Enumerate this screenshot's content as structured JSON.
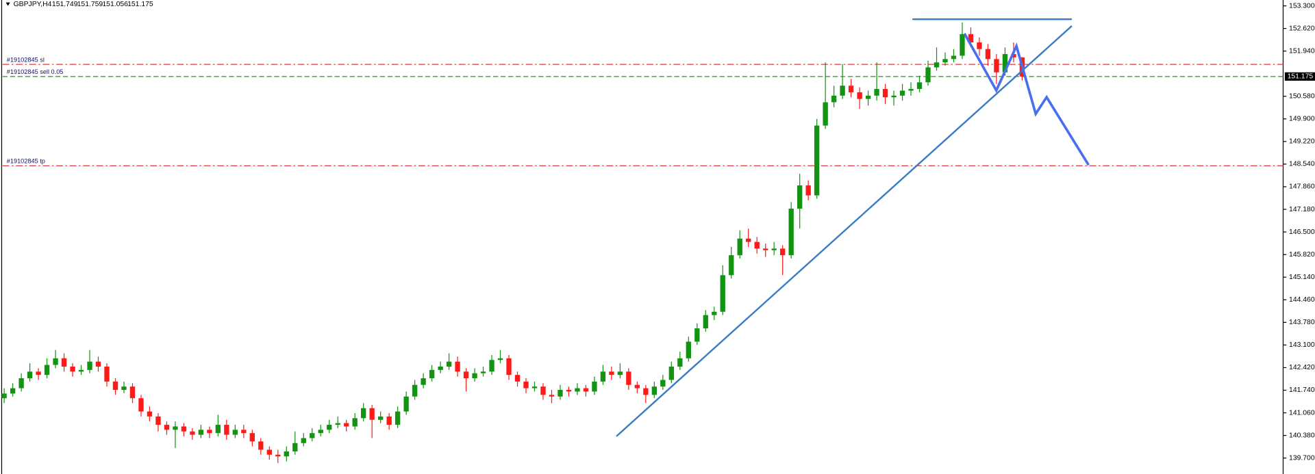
{
  "chart_data": {
    "type": "candlestick",
    "title": "GBPJPY,H4",
    "open": [
      141.5,
      141.64,
      141.8,
      142.1,
      142.3,
      142.2,
      142.5,
      142.7,
      142.45,
      142.3,
      142.35,
      142.6,
      142.45,
      142.0,
      141.75,
      141.85,
      141.5,
      141.1,
      140.95,
      140.7,
      140.55,
      140.65,
      140.5,
      140.4,
      140.55,
      140.45,
      140.7,
      140.4,
      140.55,
      140.45,
      140.2,
      139.95,
      139.8,
      139.75,
      139.9,
      140.15,
      140.3,
      140.45,
      140.55,
      140.7,
      140.75,
      140.65,
      140.9,
      141.2,
      140.85,
      140.95,
      140.7,
      141.1,
      141.55,
      141.9,
      142.1,
      142.35,
      142.45,
      142.6,
      142.3,
      142.1,
      142.25,
      142.3,
      142.65,
      142.7,
      142.2,
      142.0,
      141.8,
      141.85,
      141.6,
      141.55,
      141.75,
      141.7,
      141.8,
      141.7,
      142.0,
      142.3,
      142.2,
      142.3,
      141.9,
      141.8,
      141.6,
      141.85,
      142.05,
      142.45,
      142.7,
      143.2,
      143.6,
      144.0,
      144.1,
      145.2,
      145.8,
      146.3,
      146.2,
      146.0,
      145.95,
      146.0,
      145.8,
      147.2,
      147.9,
      147.6,
      149.7,
      150.4,
      150.6,
      150.9,
      150.7,
      150.5,
      150.6,
      150.8,
      150.55,
      150.6,
      150.75,
      150.8,
      151.0,
      151.45,
      151.6,
      151.7,
      151.8,
      152.45,
      152.2,
      152.0,
      151.7,
      151.3,
      151.85,
      151.749
    ],
    "high": [
      141.8,
      141.95,
      142.25,
      142.55,
      142.4,
      142.7,
      142.95,
      142.85,
      142.55,
      142.5,
      142.95,
      142.75,
      142.55,
      142.1,
      142.0,
      141.95,
      141.6,
      141.25,
      141.05,
      140.8,
      140.8,
      140.75,
      140.6,
      140.7,
      140.65,
      141.0,
      140.85,
      140.7,
      140.7,
      140.55,
      140.3,
      140.05,
      139.95,
      140.05,
      140.5,
      140.45,
      140.6,
      140.7,
      140.85,
      140.95,
      140.85,
      141.05,
      141.35,
      141.3,
      141.1,
      141.05,
      141.25,
      141.7,
      142.05,
      142.25,
      142.5,
      142.6,
      142.85,
      142.75,
      142.4,
      142.4,
      142.45,
      142.8,
      142.95,
      142.8,
      142.3,
      142.1,
      142.0,
      141.95,
      141.75,
      141.9,
      141.85,
      141.95,
      141.9,
      142.15,
      142.5,
      142.45,
      142.55,
      142.4,
      142.0,
      141.9,
      142.0,
      142.2,
      142.6,
      142.9,
      143.35,
      143.75,
      144.15,
      144.25,
      145.5,
      146.05,
      146.55,
      146.6,
      146.35,
      146.15,
      146.2,
      146.1,
      147.4,
      148.25,
      148.05,
      149.9,
      151.6,
      150.9,
      151.55,
      151.1,
      150.85,
      150.75,
      151.6,
      150.95,
      150.75,
      150.95,
      151.0,
      151.2,
      151.65,
      152.05,
      151.9,
      152.0,
      152.8,
      152.65,
      152.35,
      152.15,
      151.85,
      152.05,
      152.2,
      151.759
    ],
    "low": [
      141.35,
      141.55,
      141.7,
      142.0,
      142.05,
      142.1,
      142.4,
      142.3,
      142.15,
      142.2,
      142.25,
      142.3,
      141.85,
      141.6,
      141.65,
      141.35,
      140.95,
      140.8,
      140.5,
      140.4,
      140.0,
      140.35,
      140.25,
      140.3,
      140.3,
      140.35,
      140.25,
      140.3,
      140.3,
      140.05,
      139.8,
      139.65,
      139.55,
      139.6,
      139.8,
      140.05,
      140.2,
      140.35,
      140.45,
      140.6,
      140.5,
      140.55,
      140.8,
      140.3,
      140.75,
      140.55,
      140.6,
      141.0,
      141.45,
      141.8,
      142.0,
      142.25,
      142.35,
      142.15,
      141.7,
      142.0,
      142.15,
      142.2,
      142.55,
      142.05,
      141.85,
      141.65,
      141.7,
      141.45,
      141.35,
      141.45,
      141.55,
      141.6,
      141.55,
      141.6,
      141.9,
      142.05,
      142.1,
      141.75,
      141.65,
      141.35,
      141.5,
      141.75,
      141.95,
      142.35,
      142.6,
      143.1,
      143.5,
      143.85,
      144.0,
      145.1,
      145.7,
      146.05,
      145.85,
      145.75,
      145.8,
      145.2,
      145.7,
      146.6,
      147.45,
      147.5,
      149.6,
      150.25,
      150.5,
      150.55,
      150.2,
      150.3,
      150.45,
      150.35,
      150.3,
      150.45,
      150.6,
      150.7,
      150.9,
      151.35,
      151.5,
      151.6,
      151.7,
      152.05,
      151.8,
      151.5,
      150.95,
      151.2,
      151.6,
      151.056
    ],
    "close": [
      141.64,
      141.8,
      142.1,
      142.3,
      142.2,
      142.5,
      142.7,
      142.45,
      142.3,
      142.35,
      142.6,
      142.45,
      142.0,
      141.75,
      141.85,
      141.5,
      141.1,
      140.95,
      140.7,
      140.55,
      140.65,
      140.5,
      140.4,
      140.55,
      140.45,
      140.7,
      140.4,
      140.55,
      140.45,
      140.2,
      139.95,
      139.8,
      139.75,
      139.9,
      140.15,
      140.3,
      140.45,
      140.55,
      140.7,
      140.75,
      140.65,
      140.9,
      141.2,
      140.85,
      140.95,
      140.7,
      141.1,
      141.55,
      141.9,
      142.1,
      142.35,
      142.45,
      142.6,
      142.3,
      142.1,
      142.25,
      142.3,
      142.65,
      142.7,
      142.2,
      142.0,
      141.8,
      141.85,
      141.6,
      141.55,
      141.75,
      141.7,
      141.8,
      141.7,
      142.0,
      142.3,
      142.2,
      142.3,
      141.9,
      141.8,
      141.6,
      141.85,
      142.05,
      142.45,
      142.7,
      143.2,
      143.6,
      144.0,
      144.1,
      145.2,
      145.8,
      146.3,
      146.2,
      146.0,
      145.95,
      146.0,
      145.8,
      147.2,
      147.9,
      147.6,
      149.7,
      150.4,
      150.6,
      150.9,
      150.7,
      150.5,
      150.6,
      150.8,
      150.55,
      150.6,
      150.75,
      150.8,
      151.0,
      151.45,
      151.6,
      151.7,
      151.8,
      152.45,
      152.2,
      152.0,
      151.7,
      151.3,
      151.85,
      151.75,
      151.175
    ],
    "up_color": "#129412",
    "down_color": "#ff1a1a",
    "ylim": [
      139.22,
      153.476
    ],
    "yticks": [
      {
        "value": 153.3,
        "label": "153.300"
      },
      {
        "value": 152.62,
        "label": "152.620"
      },
      {
        "value": 151.94,
        "label": "151.940"
      },
      {
        "value": 150.58,
        "label": "150.580"
      },
      {
        "value": 149.9,
        "label": "149.900"
      },
      {
        "value": 149.22,
        "label": "149.220"
      },
      {
        "value": 148.54,
        "label": "148.540"
      },
      {
        "value": 147.86,
        "label": "147.860"
      },
      {
        "value": 147.18,
        "label": "147.180"
      },
      {
        "value": 146.5,
        "label": "146.500"
      },
      {
        "value": 145.82,
        "label": "145.820"
      },
      {
        "value": 145.14,
        "label": "145.140"
      },
      {
        "value": 144.46,
        "label": "144.460"
      },
      {
        "value": 143.78,
        "label": "143.780"
      },
      {
        "value": 143.1,
        "label": "143.100"
      },
      {
        "value": 142.42,
        "label": "142.420"
      },
      {
        "value": 141.74,
        "label": "141.740"
      },
      {
        "value": 141.06,
        "label": "141.060"
      },
      {
        "value": 140.38,
        "label": "140.380"
      },
      {
        "value": 139.7,
        "label": "139.700"
      }
    ],
    "levels": [
      {
        "label": "#19102845 sl",
        "value": 151.54,
        "color": "#e03a3a",
        "style": "dash-dot"
      },
      {
        "label": "#19102845 sell 0.05",
        "value": 151.175,
        "color": "#2e8b2e",
        "style": "dash"
      },
      {
        "label": "#19102845 tp",
        "value": 148.49,
        "color": "#e03a3a",
        "style": "dash-dot"
      }
    ]
  }
}
